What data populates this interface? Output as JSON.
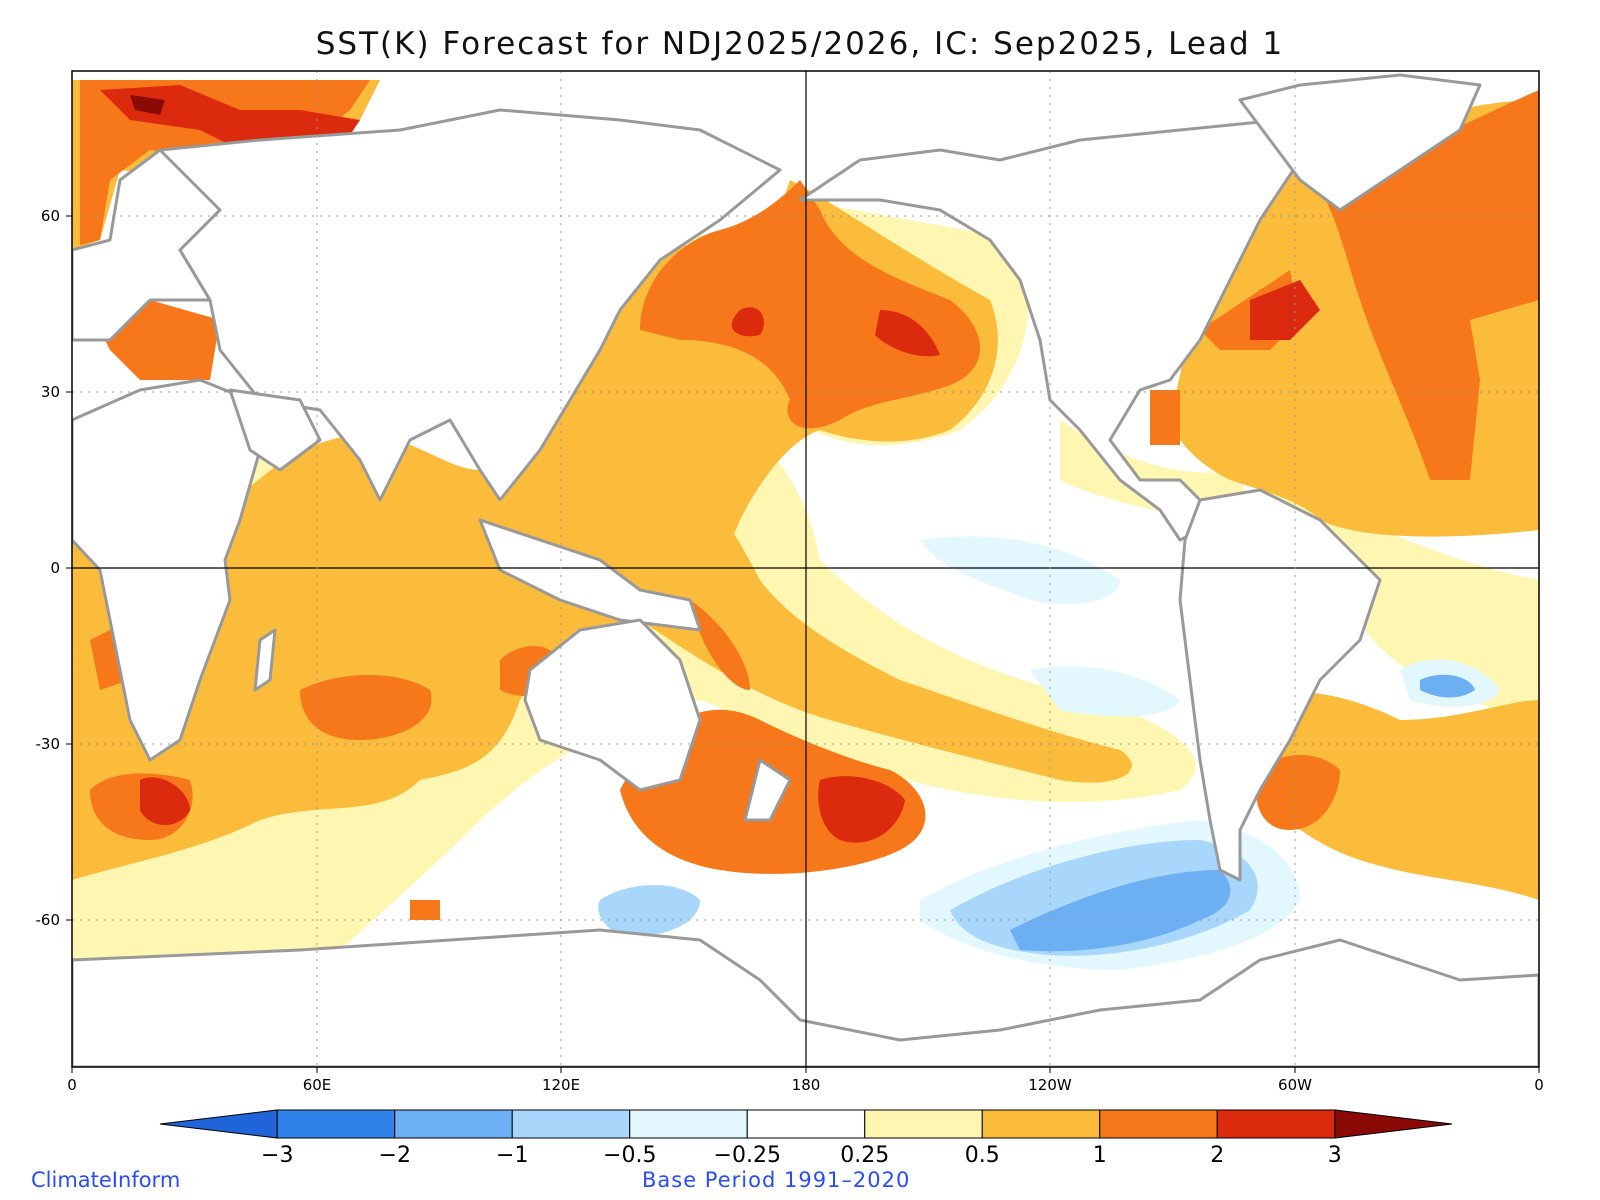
{
  "title": "SST(K) Forecast for NDJ2025/2026, IC: Sep2025, Lead 1",
  "axes": {
    "lon_ticks": [
      "0",
      "60E",
      "120E",
      "180",
      "120W",
      "60W",
      "0"
    ],
    "lat_ticks": [
      "60",
      "30",
      "0",
      "-30",
      "-60"
    ]
  },
  "colorbar": {
    "labels": [
      "-3",
      "-2",
      "-1",
      "-0.5",
      "-0.25",
      "0.25",
      "0.5",
      "1",
      "2",
      "3"
    ],
    "colors": [
      "#1f64d8",
      "#2f82ea",
      "#6cb0f3",
      "#a9d6fb",
      "#e2f7fe",
      "#ffffff",
      "#fff6b2",
      "#fbbc3c",
      "#f7781a",
      "#dc2a0e",
      "#8c0a05"
    ]
  },
  "footer": {
    "left": "ClimateInform",
    "center": "Base Period 1991–2020"
  },
  "style": {
    "land_outline": "#999999",
    "accent_text": "#2b4cf5"
  }
}
